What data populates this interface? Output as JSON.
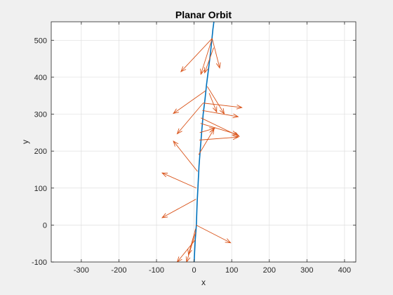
{
  "chart_data": {
    "type": "line",
    "title": "Planar Orbit",
    "xlabel": "x",
    "ylabel": "y",
    "xlim": [
      -380,
      430
    ],
    "ylim": [
      -100,
      550
    ],
    "xticks": [
      -300,
      -200,
      -100,
      0,
      100,
      200,
      300,
      400
    ],
    "yticks": [
      -100,
      0,
      100,
      200,
      300,
      400,
      500
    ],
    "grid": true,
    "colors": {
      "orbit": "#0072BD",
      "vectors": "#D95319",
      "grid": "#dfdfdf",
      "axes_bg": "#ffffff"
    },
    "series": [
      {
        "type": "line",
        "x": [
          0,
          3,
          6,
          8,
          10,
          13,
          16,
          20,
          24,
          29,
          33,
          38,
          43,
          47,
          50,
          54
        ],
        "y": [
          -100,
          -40,
          0,
          60,
          100,
          160,
          200,
          250,
          300,
          340,
          380,
          420,
          460,
          500,
          530,
          560
        ]
      },
      {
        "type": "quiver",
        "segments": [
          [
            48,
            505,
            -35,
            415
          ],
          [
            48,
            505,
            18,
            408
          ],
          [
            48,
            505,
            68,
            425
          ],
          [
            52,
            480,
            28,
            412
          ],
          [
            30,
            363,
            -55,
            302
          ],
          [
            35,
            375,
            80,
            301
          ],
          [
            40,
            357,
            60,
            306
          ],
          [
            24,
            330,
            -45,
            247
          ],
          [
            24,
            330,
            127,
            318
          ],
          [
            22,
            310,
            117,
            293
          ],
          [
            18,
            290,
            120,
            240
          ],
          [
            17,
            275,
            115,
            245
          ],
          [
            15,
            250,
            55,
            262
          ],
          [
            14,
            230,
            117,
            238
          ],
          [
            12,
            190,
            53,
            260
          ],
          [
            9,
            145,
            -55,
            227
          ],
          [
            6,
            100,
            -85,
            141
          ],
          [
            5,
            70,
            -85,
            20
          ],
          [
            5,
            0,
            97,
            -48
          ],
          [
            4,
            -10,
            -15,
            -80
          ],
          [
            3,
            -40,
            -45,
            -100
          ],
          [
            4,
            -20,
            -20,
            -100
          ]
        ]
      }
    ]
  }
}
